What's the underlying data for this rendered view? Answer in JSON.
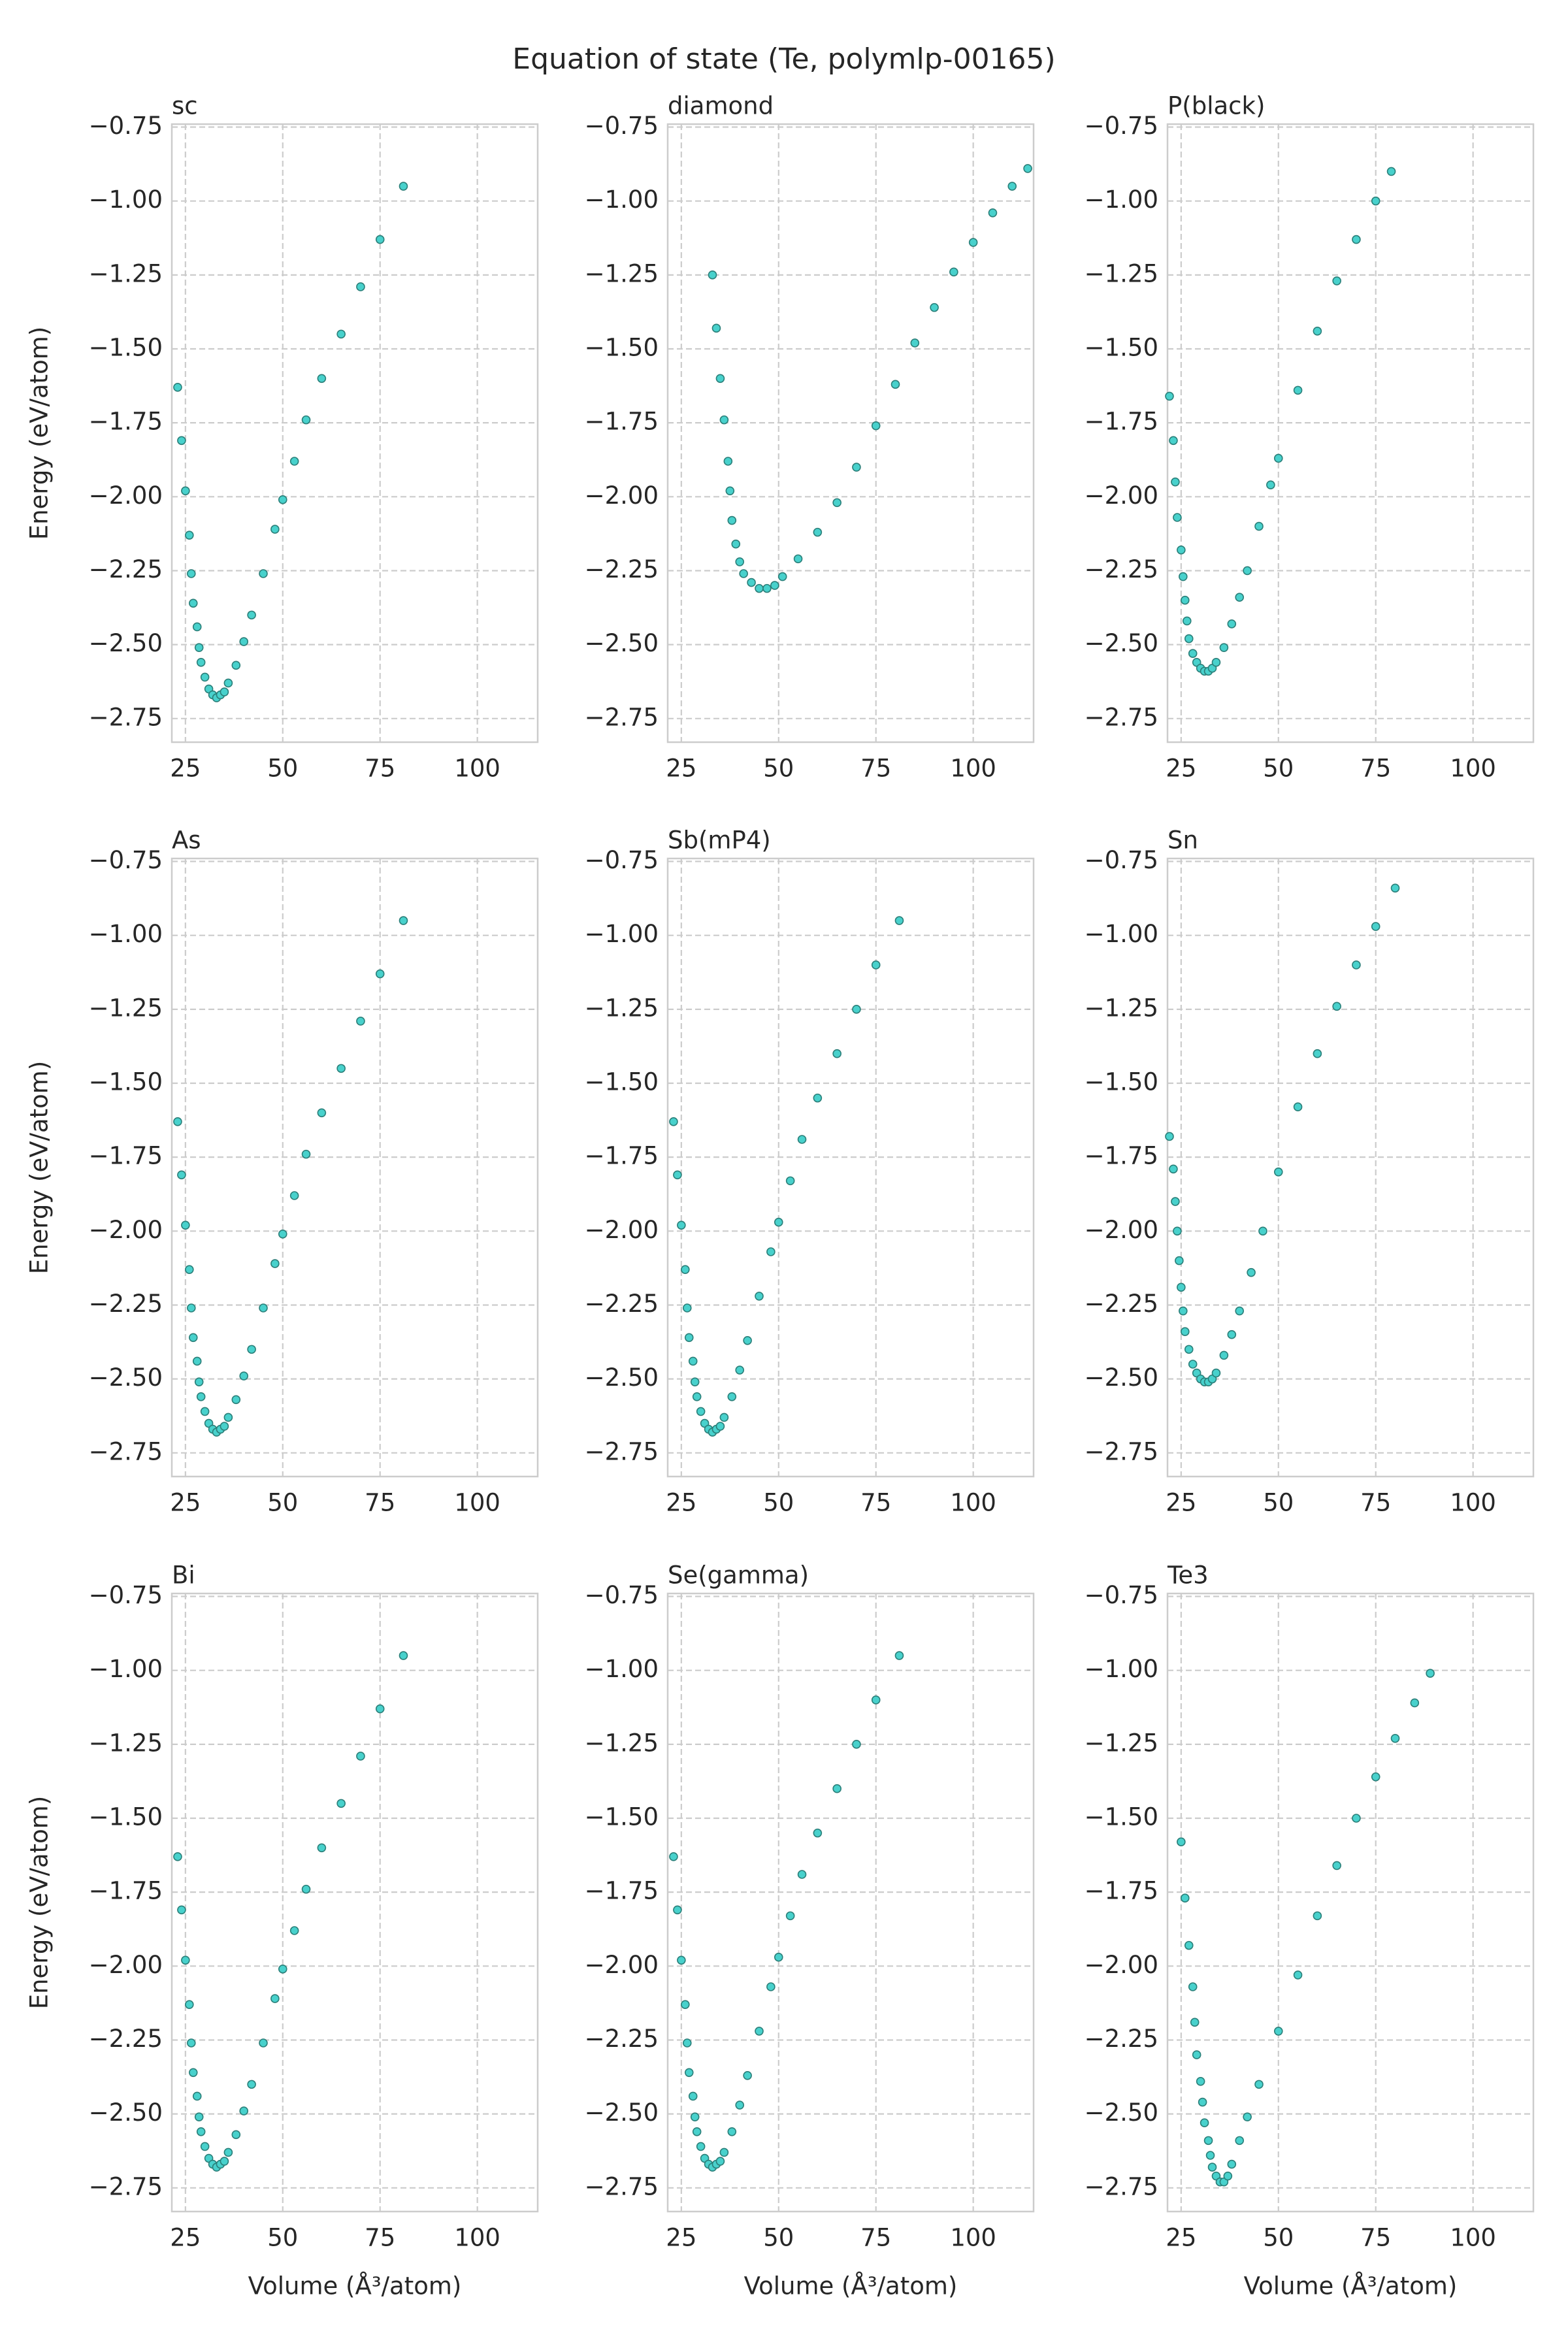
{
  "title": "Equation of state (Te, polymlp-00165)",
  "chart_data": [
    {
      "type": "scatter",
      "title": "sc",
      "ylabel": "Energy (eV/atom)",
      "color": "#48d1cc",
      "grid": true,
      "xlim": [
        21.5,
        115.5
      ],
      "ylim": [
        -2.83,
        -0.74
      ],
      "xticks": [
        25,
        50,
        75,
        100
      ],
      "yticks": [
        {
          "value": -0.75,
          "label": "−0.75"
        },
        {
          "value": -1.0,
          "label": "−1.00"
        },
        {
          "value": -1.25,
          "label": "−1.25"
        },
        {
          "value": -1.5,
          "label": "−1.50"
        },
        {
          "value": -1.75,
          "label": "−1.75"
        },
        {
          "value": -2.0,
          "label": "−2.00"
        },
        {
          "value": -2.25,
          "label": "−2.25"
        },
        {
          "value": -2.5,
          "label": "−2.50"
        },
        {
          "value": -2.75,
          "label": "−2.75"
        }
      ],
      "x": [
        23,
        24,
        25,
        26,
        26.5,
        27,
        28,
        28.5,
        29,
        30,
        31,
        32,
        33,
        34,
        35,
        36,
        38,
        40,
        42,
        45,
        48,
        50,
        53,
        56,
        60,
        65,
        70,
        75,
        81
      ],
      "values": [
        -1.63,
        -1.81,
        -1.98,
        -2.13,
        -2.26,
        -2.36,
        -2.44,
        -2.51,
        -2.56,
        -2.61,
        -2.65,
        -2.67,
        -2.68,
        -2.67,
        -2.66,
        -2.63,
        -2.57,
        -2.49,
        -2.4,
        -2.26,
        -2.11,
        -2.01,
        -1.88,
        -1.74,
        -1.6,
        -1.45,
        -1.29,
        -1.13,
        -0.95
      ]
    },
    {
      "type": "scatter",
      "title": "diamond",
      "color": "#48d1cc",
      "grid": true,
      "xlim": [
        21.5,
        115.5
      ],
      "ylim": [
        -2.83,
        -0.74
      ],
      "xticks": [
        25,
        50,
        75,
        100
      ],
      "yticks": [
        {
          "value": -0.75,
          "label": "−0.75"
        },
        {
          "value": -1.0,
          "label": "−1.00"
        },
        {
          "value": -1.25,
          "label": "−1.25"
        },
        {
          "value": -1.5,
          "label": "−1.50"
        },
        {
          "value": -1.75,
          "label": "−1.75"
        },
        {
          "value": -2.0,
          "label": "−2.00"
        },
        {
          "value": -2.25,
          "label": "−2.25"
        },
        {
          "value": -2.5,
          "label": "−2.50"
        },
        {
          "value": -2.75,
          "label": "−2.75"
        }
      ],
      "x": [
        33,
        34,
        35,
        36,
        37,
        37.5,
        38,
        39,
        40,
        41,
        43,
        45,
        47,
        49,
        51,
        55,
        60,
        65,
        70,
        75,
        80,
        85,
        90,
        95,
        100,
        105,
        110,
        114
      ],
      "values": [
        -1.25,
        -1.43,
        -1.6,
        -1.74,
        -1.88,
        -1.98,
        -2.08,
        -2.16,
        -2.22,
        -2.26,
        -2.29,
        -2.31,
        -2.31,
        -2.3,
        -2.27,
        -2.21,
        -2.12,
        -2.02,
        -1.9,
        -1.76,
        -1.62,
        -1.48,
        -1.36,
        -1.24,
        -1.14,
        -1.04,
        -0.95,
        -0.89
      ]
    },
    {
      "type": "scatter",
      "title": "P(black)",
      "color": "#48d1cc",
      "grid": true,
      "xlim": [
        21.5,
        115.5
      ],
      "ylim": [
        -2.83,
        -0.74
      ],
      "xticks": [
        25,
        50,
        75,
        100
      ],
      "yticks": [
        {
          "value": -0.75,
          "label": "−0.75"
        },
        {
          "value": -1.0,
          "label": "−1.00"
        },
        {
          "value": -1.25,
          "label": "−1.25"
        },
        {
          "value": -1.5,
          "label": "−1.50"
        },
        {
          "value": -1.75,
          "label": "−1.75"
        },
        {
          "value": -2.0,
          "label": "−2.00"
        },
        {
          "value": -2.25,
          "label": "−2.25"
        },
        {
          "value": -2.5,
          "label": "−2.50"
        },
        {
          "value": -2.75,
          "label": "−2.75"
        }
      ],
      "x": [
        22,
        23,
        23.5,
        24,
        25,
        25.5,
        26,
        26.5,
        27,
        28,
        29,
        30,
        31,
        32,
        33,
        34,
        36,
        38,
        40,
        42,
        45,
        48,
        50,
        55,
        60,
        65,
        70,
        75,
        79
      ],
      "values": [
        -1.66,
        -1.81,
        -1.95,
        -2.07,
        -2.18,
        -2.27,
        -2.35,
        -2.42,
        -2.48,
        -2.53,
        -2.56,
        -2.58,
        -2.59,
        -2.59,
        -2.58,
        -2.56,
        -2.51,
        -2.43,
        -2.34,
        -2.25,
        -2.1,
        -1.96,
        -1.87,
        -1.64,
        -1.44,
        -1.27,
        -1.13,
        -1.0,
        -0.9
      ]
    },
    {
      "type": "scatter",
      "title": "As",
      "ylabel": "Energy (eV/atom)",
      "color": "#48d1cc",
      "grid": true,
      "xlim": [
        21.5,
        115.5
      ],
      "ylim": [
        -2.83,
        -0.74
      ],
      "xticks": [
        25,
        50,
        75,
        100
      ],
      "yticks": [
        {
          "value": -0.75,
          "label": "−0.75"
        },
        {
          "value": -1.0,
          "label": "−1.00"
        },
        {
          "value": -1.25,
          "label": "−1.25"
        },
        {
          "value": -1.5,
          "label": "−1.50"
        },
        {
          "value": -1.75,
          "label": "−1.75"
        },
        {
          "value": -2.0,
          "label": "−2.00"
        },
        {
          "value": -2.25,
          "label": "−2.25"
        },
        {
          "value": -2.5,
          "label": "−2.50"
        },
        {
          "value": -2.75,
          "label": "−2.75"
        }
      ],
      "x": [
        23,
        24,
        25,
        26,
        26.5,
        27,
        28,
        28.5,
        29,
        30,
        31,
        32,
        33,
        34,
        35,
        36,
        38,
        40,
        42,
        45,
        48,
        50,
        53,
        56,
        60,
        65,
        70,
        75,
        81
      ],
      "values": [
        -1.63,
        -1.81,
        -1.98,
        -2.13,
        -2.26,
        -2.36,
        -2.44,
        -2.51,
        -2.56,
        -2.61,
        -2.65,
        -2.67,
        -2.68,
        -2.67,
        -2.66,
        -2.63,
        -2.57,
        -2.49,
        -2.4,
        -2.26,
        -2.11,
        -2.01,
        -1.88,
        -1.74,
        -1.6,
        -1.45,
        -1.29,
        -1.13,
        -0.95
      ]
    },
    {
      "type": "scatter",
      "title": "Sb(mP4)",
      "color": "#48d1cc",
      "grid": true,
      "xlim": [
        21.5,
        115.5
      ],
      "ylim": [
        -2.83,
        -0.74
      ],
      "xticks": [
        25,
        50,
        75,
        100
      ],
      "yticks": [
        {
          "value": -0.75,
          "label": "−0.75"
        },
        {
          "value": -1.0,
          "label": "−1.00"
        },
        {
          "value": -1.25,
          "label": "−1.25"
        },
        {
          "value": -1.5,
          "label": "−1.50"
        },
        {
          "value": -1.75,
          "label": "−1.75"
        },
        {
          "value": -2.0,
          "label": "−2.00"
        },
        {
          "value": -2.25,
          "label": "−2.25"
        },
        {
          "value": -2.5,
          "label": "−2.50"
        },
        {
          "value": -2.75,
          "label": "−2.75"
        }
      ],
      "x": [
        23,
        24,
        25,
        26,
        26.5,
        27,
        28,
        28.5,
        29,
        30,
        31,
        32,
        33,
        34,
        35,
        36,
        38,
        40,
        42,
        45,
        48,
        50,
        53,
        56,
        60,
        65,
        70,
        75,
        81
      ],
      "values": [
        -1.63,
        -1.81,
        -1.98,
        -2.13,
        -2.26,
        -2.36,
        -2.44,
        -2.51,
        -2.56,
        -2.61,
        -2.65,
        -2.67,
        -2.68,
        -2.67,
        -2.66,
        -2.63,
        -2.56,
        -2.47,
        -2.37,
        -2.22,
        -2.07,
        -1.97,
        -1.83,
        -1.69,
        -1.55,
        -1.4,
        -1.25,
        -1.1,
        -0.95
      ]
    },
    {
      "type": "scatter",
      "title": "Sn",
      "color": "#48d1cc",
      "grid": true,
      "xlim": [
        21.5,
        115.5
      ],
      "ylim": [
        -2.83,
        -0.74
      ],
      "xticks": [
        25,
        50,
        75,
        100
      ],
      "yticks": [
        {
          "value": -0.75,
          "label": "−0.75"
        },
        {
          "value": -1.0,
          "label": "−1.00"
        },
        {
          "value": -1.25,
          "label": "−1.25"
        },
        {
          "value": -1.5,
          "label": "−1.50"
        },
        {
          "value": -1.75,
          "label": "−1.75"
        },
        {
          "value": -2.0,
          "label": "−2.00"
        },
        {
          "value": -2.25,
          "label": "−2.25"
        },
        {
          "value": -2.5,
          "label": "−2.50"
        },
        {
          "value": -2.75,
          "label": "−2.75"
        }
      ],
      "x": [
        22,
        23,
        23.5,
        24,
        24.5,
        25,
        25.5,
        26,
        27,
        28,
        29,
        30,
        31,
        32,
        33,
        34,
        36,
        38,
        40,
        43,
        46,
        50,
        55,
        60,
        65,
        70,
        75,
        80
      ],
      "values": [
        -1.68,
        -1.79,
        -1.9,
        -2.0,
        -2.1,
        -2.19,
        -2.27,
        -2.34,
        -2.4,
        -2.45,
        -2.48,
        -2.5,
        -2.51,
        -2.51,
        -2.5,
        -2.48,
        -2.42,
        -2.35,
        -2.27,
        -2.14,
        -2.0,
        -1.8,
        -1.58,
        -1.4,
        -1.24,
        -1.1,
        -0.97,
        -0.84
      ]
    },
    {
      "type": "scatter",
      "title": "Bi",
      "ylabel": "Energy (eV/atom)",
      "xlabel": "Volume (Å³/atom)",
      "color": "#48d1cc",
      "grid": true,
      "xlim": [
        21.5,
        115.5
      ],
      "ylim": [
        -2.83,
        -0.74
      ],
      "xticks": [
        25,
        50,
        75,
        100
      ],
      "yticks": [
        {
          "value": -0.75,
          "label": "−0.75"
        },
        {
          "value": -1.0,
          "label": "−1.00"
        },
        {
          "value": -1.25,
          "label": "−1.25"
        },
        {
          "value": -1.5,
          "label": "−1.50"
        },
        {
          "value": -1.75,
          "label": "−1.75"
        },
        {
          "value": -2.0,
          "label": "−2.00"
        },
        {
          "value": -2.25,
          "label": "−2.25"
        },
        {
          "value": -2.5,
          "label": "−2.50"
        },
        {
          "value": -2.75,
          "label": "−2.75"
        }
      ],
      "x": [
        23,
        24,
        25,
        26,
        26.5,
        27,
        28,
        28.5,
        29,
        30,
        31,
        32,
        33,
        34,
        35,
        36,
        38,
        40,
        42,
        45,
        48,
        50,
        53,
        56,
        60,
        65,
        70,
        75,
        81
      ],
      "values": [
        -1.63,
        -1.81,
        -1.98,
        -2.13,
        -2.26,
        -2.36,
        -2.44,
        -2.51,
        -2.56,
        -2.61,
        -2.65,
        -2.67,
        -2.68,
        -2.67,
        -2.66,
        -2.63,
        -2.57,
        -2.49,
        -2.4,
        -2.26,
        -2.11,
        -2.01,
        -1.88,
        -1.74,
        -1.6,
        -1.45,
        -1.29,
        -1.13,
        -0.95
      ]
    },
    {
      "type": "scatter",
      "title": "Se(gamma)",
      "xlabel": "Volume (Å³/atom)",
      "color": "#48d1cc",
      "grid": true,
      "xlim": [
        21.5,
        115.5
      ],
      "ylim": [
        -2.83,
        -0.74
      ],
      "xticks": [
        25,
        50,
        75,
        100
      ],
      "yticks": [
        {
          "value": -0.75,
          "label": "−0.75"
        },
        {
          "value": -1.0,
          "label": "−1.00"
        },
        {
          "value": -1.25,
          "label": "−1.25"
        },
        {
          "value": -1.5,
          "label": "−1.50"
        },
        {
          "value": -1.75,
          "label": "−1.75"
        },
        {
          "value": -2.0,
          "label": "−2.00"
        },
        {
          "value": -2.25,
          "label": "−2.25"
        },
        {
          "value": -2.5,
          "label": "−2.50"
        },
        {
          "value": -2.75,
          "label": "−2.75"
        }
      ],
      "x": [
        23,
        24,
        25,
        26,
        26.5,
        27,
        28,
        28.5,
        29,
        30,
        31,
        32,
        33,
        34,
        35,
        36,
        38,
        40,
        42,
        45,
        48,
        50,
        53,
        56,
        60,
        65,
        70,
        75,
        81
      ],
      "values": [
        -1.63,
        -1.81,
        -1.98,
        -2.13,
        -2.26,
        -2.36,
        -2.44,
        -2.51,
        -2.56,
        -2.61,
        -2.65,
        -2.67,
        -2.68,
        -2.67,
        -2.66,
        -2.63,
        -2.56,
        -2.47,
        -2.37,
        -2.22,
        -2.07,
        -1.97,
        -1.83,
        -1.69,
        -1.55,
        -1.4,
        -1.25,
        -1.1,
        -0.95
      ]
    },
    {
      "type": "scatter",
      "title": "Te3",
      "xlabel": "Volume (Å³/atom)",
      "color": "#48d1cc",
      "grid": true,
      "xlim": [
        21.5,
        115.5
      ],
      "ylim": [
        -2.83,
        -0.74
      ],
      "xticks": [
        25,
        50,
        75,
        100
      ],
      "yticks": [
        {
          "value": -0.75,
          "label": "−0.75"
        },
        {
          "value": -1.0,
          "label": "−1.00"
        },
        {
          "value": -1.25,
          "label": "−1.25"
        },
        {
          "value": -1.5,
          "label": "−1.50"
        },
        {
          "value": -1.75,
          "label": "−1.75"
        },
        {
          "value": -2.0,
          "label": "−2.00"
        },
        {
          "value": -2.25,
          "label": "−2.25"
        },
        {
          "value": -2.5,
          "label": "−2.50"
        },
        {
          "value": -2.75,
          "label": "−2.75"
        }
      ],
      "x": [
        25,
        26,
        27,
        28,
        28.5,
        29,
        30,
        30.5,
        31,
        32,
        32.5,
        33,
        34,
        35,
        36,
        37,
        38,
        40,
        42,
        45,
        50,
        55,
        60,
        65,
        70,
        75,
        80,
        85,
        89
      ],
      "values": [
        -1.58,
        -1.77,
        -1.93,
        -2.07,
        -2.19,
        -2.3,
        -2.39,
        -2.46,
        -2.53,
        -2.59,
        -2.64,
        -2.68,
        -2.71,
        -2.73,
        -2.73,
        -2.71,
        -2.67,
        -2.59,
        -2.51,
        -2.4,
        -2.22,
        -2.03,
        -1.83,
        -1.66,
        -1.5,
        -1.36,
        -1.23,
        -1.11,
        -1.01
      ]
    }
  ]
}
